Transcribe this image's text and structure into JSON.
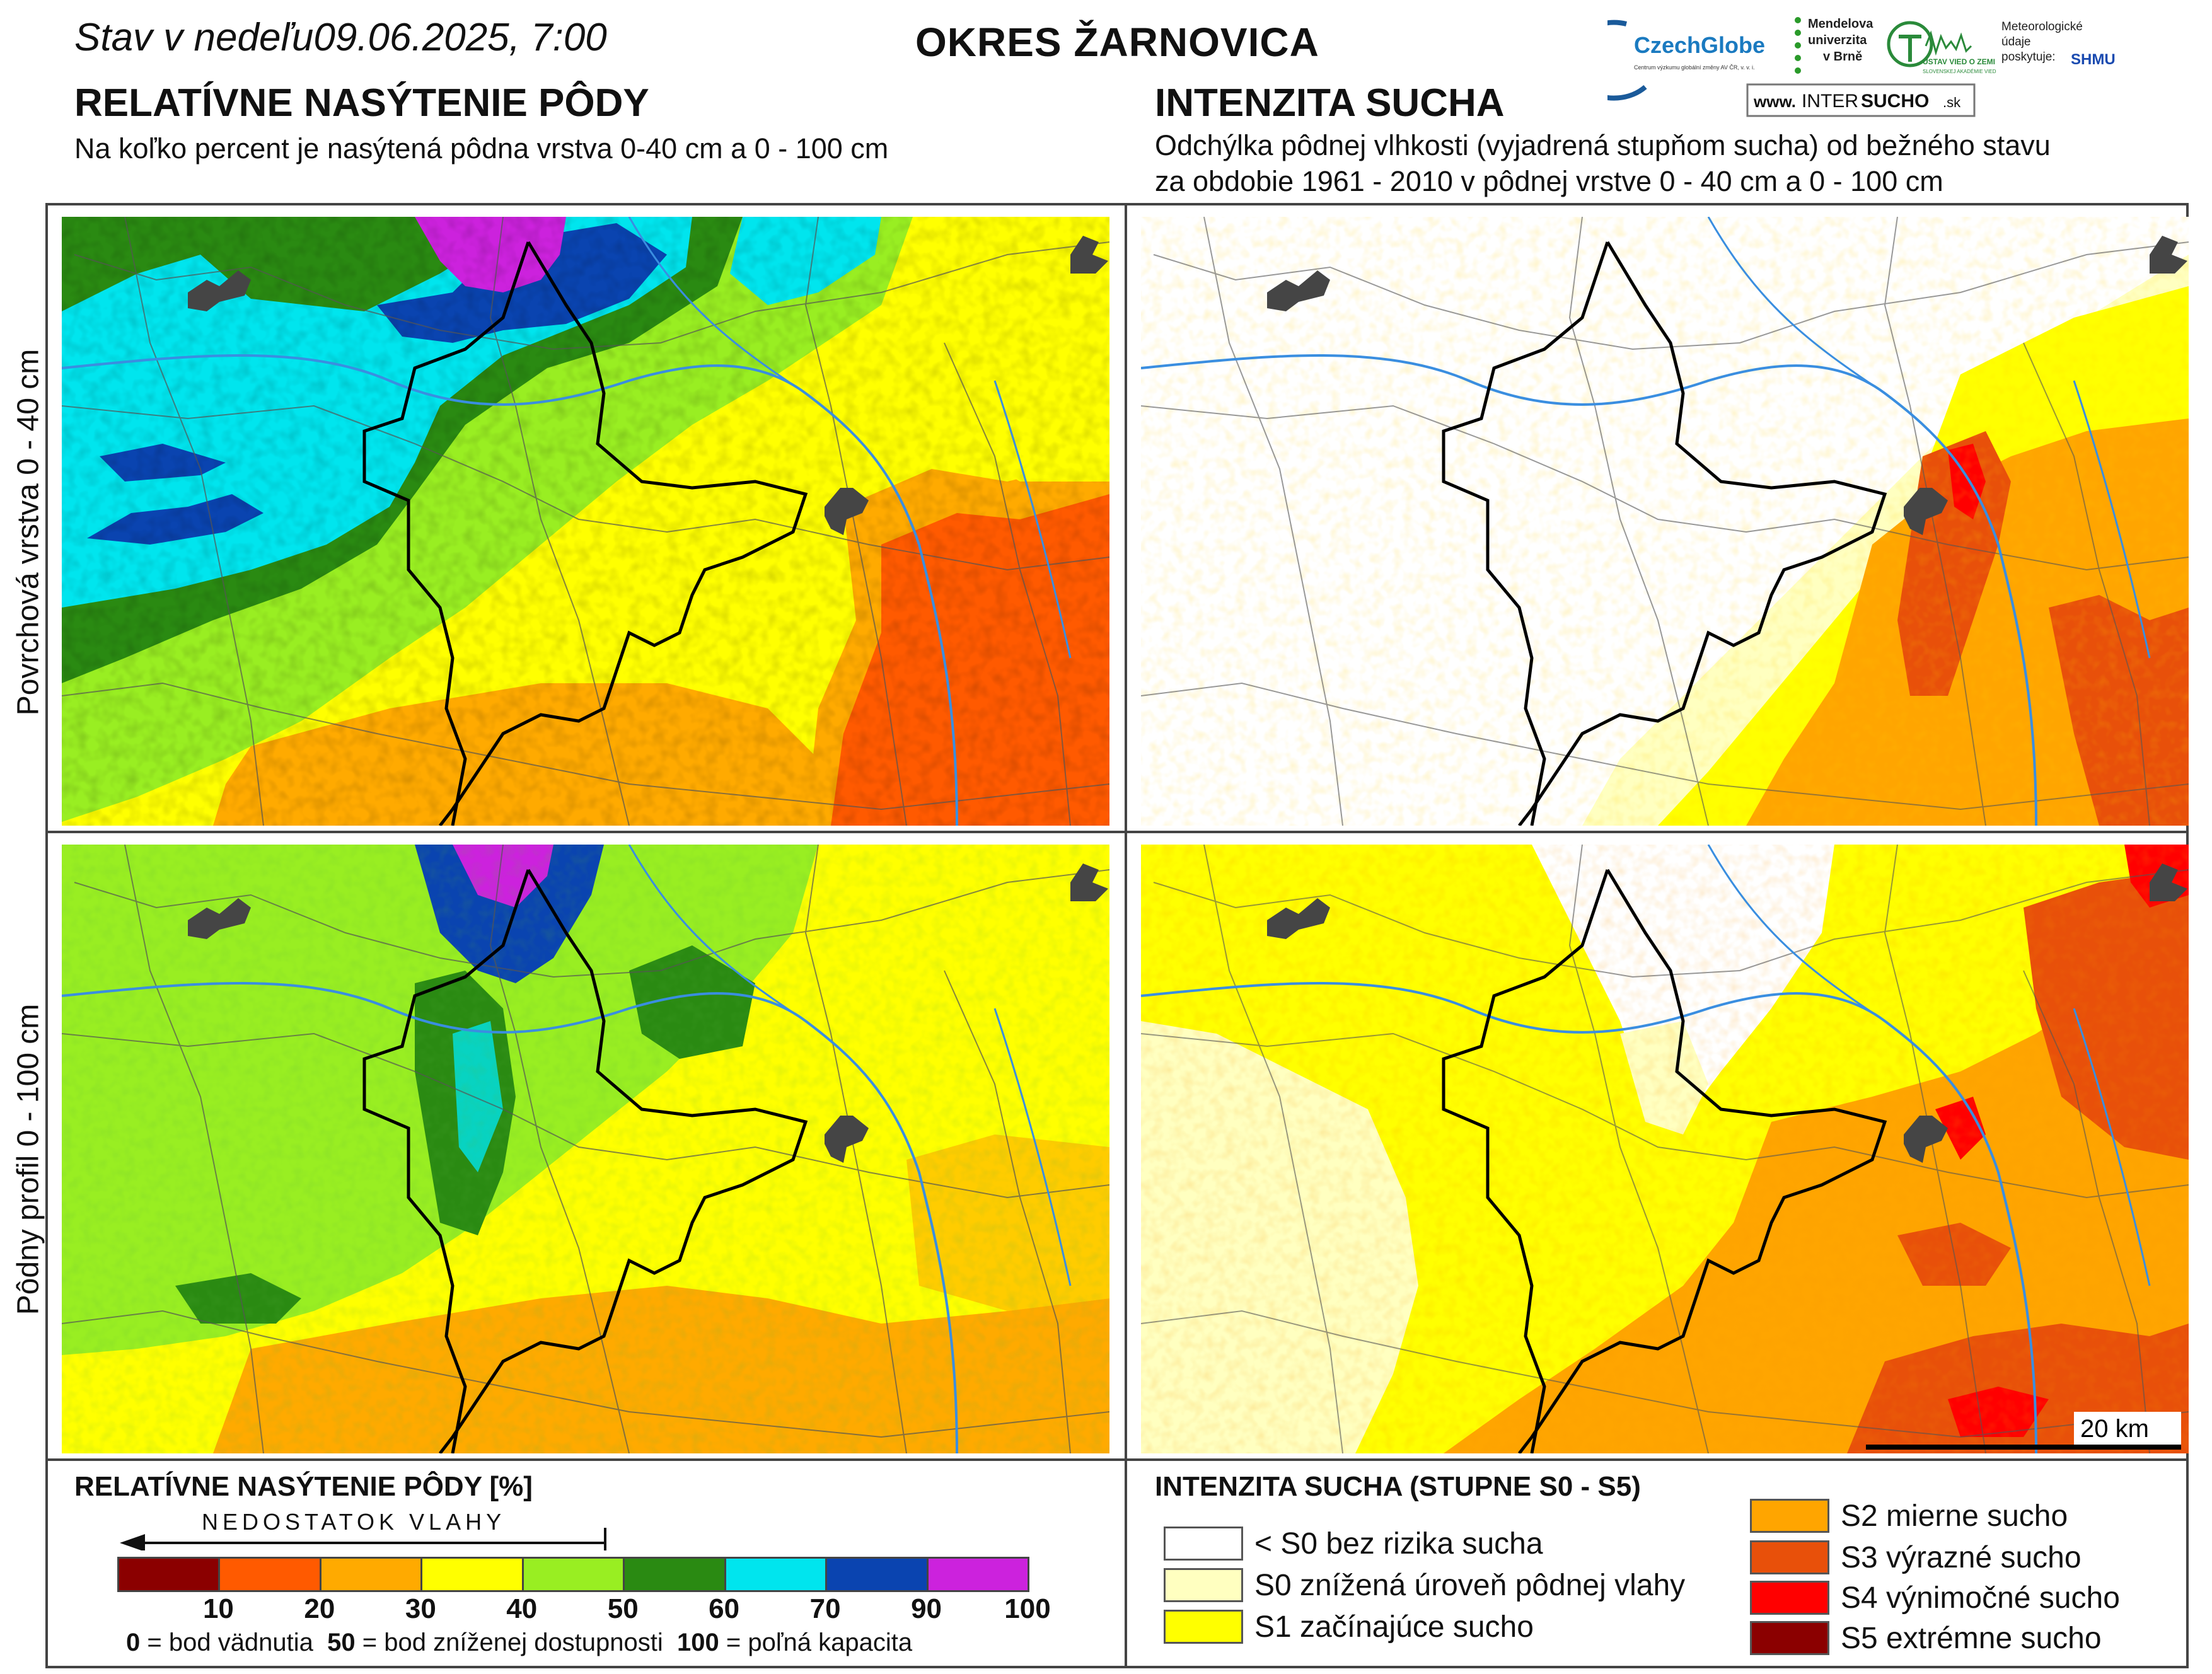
{
  "header": {
    "date_text": "Stav v nedeľu09.06.2025, 7:00",
    "district": "OKRES  ŽARNOVICA",
    "left_title": "RELATÍVNE NASÝTENIE PÔDY",
    "left_desc": "Na koľko percent je nasýtená pôdna vrstva 0-40 cm a 0 - 100 cm",
    "right_title": "INTENZITA SUCHA",
    "right_desc_1": "Odchýlka pôdnej vlhkosti (vyjadrená stupňom sucha) od bežného stavu",
    "right_desc_2": "za obdobie 1961 - 2010 v pôdnej vrstve 0 - 40 cm a 0 - 100 cm"
  },
  "logos": {
    "czechglobe": "CzechGlobe",
    "czechglobe_sub": "Centrum výzkumu globální změny AV ČR, v. v. i.",
    "mendel_1": "Mendelova",
    "mendel_2": "univerzita",
    "mendel_3": "v Brně",
    "uvz": "ÚSTAV VIED O ZEMI",
    "uvz_sub": "SLOVENSKEJ AKADÉMIE VIED",
    "meteo_1": "Meteorologické",
    "meteo_2": "údaje",
    "meteo_3": "poskytuje:",
    "shmu": "SHMU",
    "intersucho_www": "www.",
    "intersucho_inter": "INTER",
    "intersucho_sucho": "SUCHO",
    "intersucho_sk": ".sk"
  },
  "row_labels": {
    "top": "Povrchová vrstva 0 - 40 cm",
    "bottom": "Pôdny profil 0 - 100 cm"
  },
  "scale_bar": {
    "label": "20 km"
  },
  "saturation_legend": {
    "title": "RELATÍVNE NASÝTENIE PÔDY [%]",
    "arrow_label": "NEDOSTATOK VLAHY",
    "bins": [
      {
        "color": "#8b0000"
      },
      {
        "color": "#ff5a00"
      },
      {
        "color": "#ffaa00"
      },
      {
        "color": "#ffff00"
      },
      {
        "color": "#99ee22"
      },
      {
        "color": "#2a8a12"
      },
      {
        "color": "#00e5ee"
      },
      {
        "color": "#0a44b0"
      },
      {
        "color": "#cc22dd"
      }
    ],
    "ticks": [
      "10",
      "20",
      "30",
      "40",
      "50",
      "60",
      "70",
      "90",
      "100"
    ],
    "caption_0": "0",
    "caption_0_text": " = bod vädnutia  ",
    "caption_50": "50",
    "caption_50_text": " = bod zníženej dostupnosti  ",
    "caption_100": "100",
    "caption_100_text": " = poľná kapacita"
  },
  "drought_legend": {
    "title": "INTENZITA SUCHA (STUPNE S0 - S5)",
    "items": [
      {
        "label": "< S0 bez rizika sucha",
        "color": "#ffffff"
      },
      {
        "label": "S0 znížená úroveň pôdnej vlahy",
        "color": "#ffffc0"
      },
      {
        "label": "S1 začínajúce sucho",
        "color": "#ffff00"
      },
      {
        "label": "S2 mierne sucho",
        "color": "#ffa500"
      },
      {
        "label": "S3 výrazné sucho",
        "color": "#e8500a"
      },
      {
        "label": "S4 výnimočné sucho",
        "color": "#ff0000"
      },
      {
        "label": "S5 extrémne sucho",
        "color": "#8b0000"
      }
    ]
  }
}
